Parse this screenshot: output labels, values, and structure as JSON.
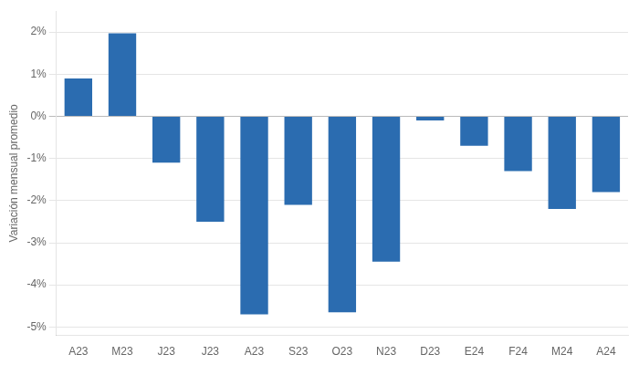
{
  "chart_data": {
    "type": "bar",
    "categories": [
      "A23",
      "M23",
      "J23",
      "J23",
      "A23",
      "S23",
      "O23",
      "N23",
      "D23",
      "E24",
      "F24",
      "M24",
      "A24"
    ],
    "values": [
      0.9,
      1.97,
      -1.1,
      -2.5,
      -4.7,
      -2.1,
      -4.65,
      -3.45,
      -0.1,
      -0.7,
      -1.3,
      -2.2,
      -1.8
    ],
    "color": "#2b6cb0",
    "ylabel": "Variación mensual promedio",
    "ylim": [
      -5.2,
      2.5
    ],
    "yticks": [
      {
        "value": -5,
        "label": "-5%"
      },
      {
        "value": -4,
        "label": "-4%"
      },
      {
        "value": -3,
        "label": "-3%"
      },
      {
        "value": -2,
        "label": "-2%"
      },
      {
        "value": -1,
        "label": "-1%"
      },
      {
        "value": 0,
        "label": "0%"
      },
      {
        "value": 1,
        "label": "1%"
      },
      {
        "value": 2,
        "label": "2%"
      }
    ],
    "grid": true
  }
}
